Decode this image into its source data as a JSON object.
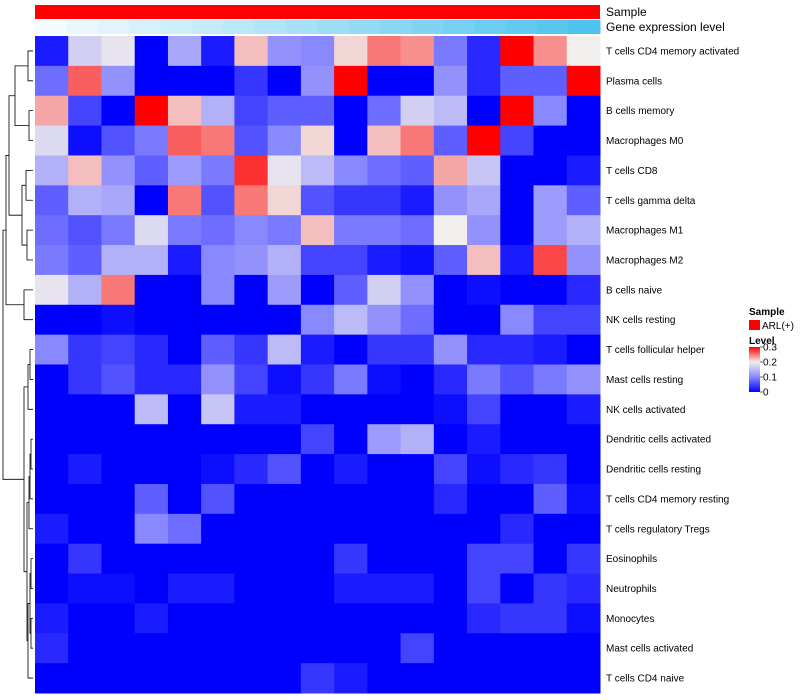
{
  "chart_data": {
    "type": "heatmap",
    "annotations": {
      "sample_label": "Sample",
      "gene_label": "Gene expression level",
      "sample_color": "#ff0000",
      "gene_values": [
        0.0,
        0.05,
        0.1,
        0.15,
        0.2,
        0.25,
        0.3,
        0.35,
        0.4,
        0.45,
        0.5,
        0.55,
        0.6,
        0.65,
        0.7,
        0.75,
        0.8,
        0.85
      ]
    },
    "rows": [
      "T cells CD4 memory activated",
      "Plasma cells",
      "B cells memory",
      "Macrophages M0",
      "T cells CD8",
      "T cells gamma delta",
      "Macrophages M1",
      "Macrophages M2",
      "B cells naive",
      "NK cells resting",
      "T cells follicular helper",
      "Mast cells resting",
      "NK cells activated",
      "Dendritic cells activated",
      "Dendritic cells resting",
      "T cells CD4 memory resting",
      "T cells regulatory  Tregs",
      "Eosinophils",
      "Neutrophils",
      "Monocytes",
      "Mast cells activated",
      "T cells CD4 naive"
    ],
    "values": [
      [
        0.02,
        0.17,
        0.19,
        0.0,
        0.13,
        0.02,
        0.22,
        0.11,
        0.1,
        0.21,
        0.25,
        0.24,
        0.09,
        0.03,
        0.3,
        0.24,
        0.2
      ],
      [
        0.08,
        0.26,
        0.11,
        0.0,
        0.0,
        0.0,
        0.04,
        0.0,
        0.11,
        0.3,
        0.0,
        0.0,
        0.11,
        0.03,
        0.07,
        0.07,
        0.3
      ],
      [
        0.23,
        0.05,
        0.0,
        0.3,
        0.22,
        0.14,
        0.05,
        0.07,
        0.07,
        0.0,
        0.08,
        0.17,
        0.15,
        0.0,
        0.3,
        0.1,
        0.0
      ],
      [
        0.18,
        0.01,
        0.06,
        0.09,
        0.26,
        0.25,
        0.06,
        0.1,
        0.21,
        0.0,
        0.22,
        0.25,
        0.07,
        0.3,
        0.05,
        0.0,
        0.0
      ],
      [
        0.14,
        0.22,
        0.11,
        0.07,
        0.12,
        0.09,
        0.28,
        0.19,
        0.15,
        0.1,
        0.08,
        0.07,
        0.23,
        0.16,
        0.0,
        0.0,
        0.02
      ],
      [
        0.07,
        0.14,
        0.13,
        0.0,
        0.25,
        0.06,
        0.25,
        0.21,
        0.06,
        0.04,
        0.04,
        0.02,
        0.11,
        0.13,
        0.0,
        0.12,
        0.07
      ],
      [
        0.08,
        0.06,
        0.09,
        0.18,
        0.09,
        0.08,
        0.1,
        0.09,
        0.22,
        0.09,
        0.09,
        0.08,
        0.2,
        0.11,
        0.0,
        0.12,
        0.14
      ],
      [
        0.09,
        0.07,
        0.14,
        0.14,
        0.02,
        0.1,
        0.11,
        0.14,
        0.05,
        0.05,
        0.02,
        0.01,
        0.07,
        0.22,
        0.02,
        0.27,
        0.11
      ],
      [
        0.19,
        0.14,
        0.25,
        0.0,
        0.0,
        0.1,
        0.0,
        0.12,
        0.0,
        0.07,
        0.17,
        0.11,
        0.0,
        0.01,
        0.0,
        0.0,
        0.03
      ],
      [
        0.0,
        0.0,
        0.01,
        0.0,
        0.0,
        0.0,
        0.0,
        0.0,
        0.1,
        0.15,
        0.11,
        0.08,
        0.0,
        0.0,
        0.1,
        0.05,
        0.05
      ],
      [
        0.1,
        0.04,
        0.05,
        0.03,
        0.0,
        0.07,
        0.04,
        0.15,
        0.02,
        0.0,
        0.04,
        0.04,
        0.11,
        0.03,
        0.03,
        0.02,
        0.0
      ],
      [
        0.0,
        0.04,
        0.06,
        0.03,
        0.03,
        0.11,
        0.05,
        0.01,
        0.04,
        0.09,
        0.01,
        0.0,
        0.03,
        0.09,
        0.06,
        0.09,
        0.11
      ],
      [
        0.0,
        0.0,
        0.0,
        0.15,
        0.0,
        0.16,
        0.02,
        0.02,
        0.0,
        0.0,
        0.0,
        0.0,
        0.01,
        0.05,
        0.0,
        0.0,
        0.02
      ],
      [
        0.0,
        0.0,
        0.0,
        0.0,
        0.0,
        0.0,
        0.0,
        0.0,
        0.05,
        0.0,
        0.12,
        0.14,
        0.0,
        0.02,
        0.0,
        0.0,
        0.0
      ],
      [
        0.0,
        0.02,
        0.0,
        0.0,
        0.0,
        0.01,
        0.03,
        0.06,
        0.0,
        0.02,
        0.0,
        0.0,
        0.05,
        0.01,
        0.03,
        0.04,
        0.0
      ],
      [
        0.0,
        0.0,
        0.0,
        0.07,
        0.0,
        0.06,
        0.0,
        0.0,
        0.0,
        0.0,
        0.0,
        0.0,
        0.03,
        0.0,
        0.0,
        0.07,
        0.01
      ],
      [
        0.02,
        0.0,
        0.0,
        0.1,
        0.08,
        0.0,
        0.0,
        0.0,
        0.0,
        0.0,
        0.0,
        0.0,
        0.0,
        0.0,
        0.03,
        0.0,
        0.0
      ],
      [
        0.0,
        0.04,
        0.0,
        0.0,
        0.0,
        0.0,
        0.0,
        0.0,
        0.0,
        0.04,
        0.0,
        0.0,
        0.0,
        0.05,
        0.05,
        0.0,
        0.04
      ],
      [
        0.0,
        0.01,
        0.01,
        0.0,
        0.02,
        0.02,
        0.0,
        0.0,
        0.0,
        0.02,
        0.02,
        0.02,
        0.0,
        0.05,
        0.0,
        0.04,
        0.03
      ],
      [
        0.02,
        0.0,
        0.0,
        0.02,
        0.0,
        0.0,
        0.0,
        0.0,
        0.0,
        0.0,
        0.0,
        0.0,
        0.0,
        0.03,
        0.04,
        0.04,
        0.01
      ],
      [
        0.03,
        0.0,
        0.0,
        0.0,
        0.0,
        0.0,
        0.0,
        0.0,
        0.0,
        0.0,
        0.0,
        0.05,
        0.0,
        0.0,
        0.0,
        0.0,
        0.0
      ],
      [
        0.0,
        0.0,
        0.0,
        0.0,
        0.0,
        0.0,
        0.0,
        0.0,
        0.04,
        0.02,
        0.0,
        0.0,
        0.0,
        0.0,
        0.0,
        0.0,
        0.0
      ]
    ],
    "color_scale": {
      "stops": [
        0,
        0.1,
        0.2,
        0.3
      ],
      "colors": [
        "#0000ff",
        "#8888ff",
        "#f1eeee",
        "#ff0000"
      ]
    },
    "legend": {
      "sample_title": "Sample",
      "sample_item": "ARL(+)",
      "level_title": "Level",
      "level_ticks": [
        "0.3",
        "0.2",
        "0.1",
        "0"
      ]
    }
  }
}
